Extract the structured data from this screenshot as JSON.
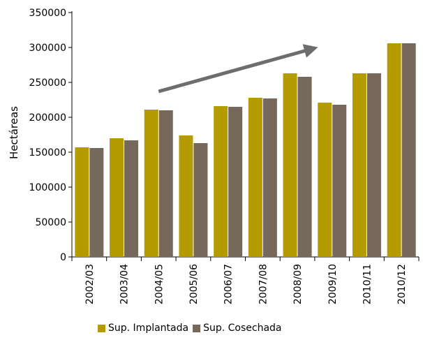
{
  "chart_data": {
    "type": "bar",
    "title": "",
    "xlabel": "",
    "ylabel": "Hectáreas",
    "ylim": [
      0,
      350000
    ],
    "yticks": [
      0,
      50000,
      100000,
      150000,
      200000,
      250000,
      300000,
      350000
    ],
    "ytick_labels": [
      "0",
      "50000",
      "100000",
      "150000",
      "200000",
      "250000",
      "300000",
      "350000"
    ],
    "categories": [
      "2002/03",
      "2003/04",
      "2004/05",
      "2005/06",
      "2006/07",
      "2007/08",
      "2008/09",
      "2009/10",
      "2010/11",
      "2010/12"
    ],
    "series": [
      {
        "name": "Sup. Implantada",
        "color": "#b49c00",
        "values": [
          157000,
          170000,
          211000,
          174000,
          216000,
          228000,
          263000,
          221000,
          263000,
          306000
        ]
      },
      {
        "name": "Sup. Cosechada",
        "color": "#76685a",
        "values": [
          156000,
          167000,
          210000,
          163000,
          215000,
          227000,
          258000,
          218000,
          263000,
          306000
        ]
      }
    ],
    "grid": false,
    "legend_position": "bottom",
    "annotations": [
      {
        "type": "trend-arrow",
        "color": "#6d6d6d",
        "from_category": "2004/05",
        "to_category": "2008/09"
      }
    ]
  }
}
